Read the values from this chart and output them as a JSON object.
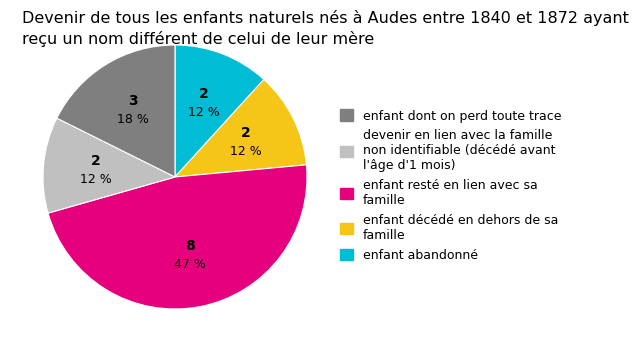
{
  "title": "Devenir de tous les enfants naturels nés à Audes entre 1840 et 1872 ayant\nreçu un nom différent de celui de leur mère",
  "slices": [
    {
      "label": "enfant dont on perd toute trace",
      "value": 3,
      "color": "#7f7f7f",
      "pct": "18 %",
      "text_color": "black"
    },
    {
      "label": "devenir en lien avec la famille\nnon identifiable (décédé avant\nl'âge d'1 mois)",
      "value": 2,
      "color": "#c0c0c0",
      "pct": "12 %",
      "text_color": "black"
    },
    {
      "label": "enfant resté en lien avec sa\nfamille",
      "value": 8,
      "color": "#e6007e",
      "pct": "47 %",
      "text_color": "black"
    },
    {
      "label": "enfant décédé en dehors de sa\nfamille",
      "value": 2,
      "color": "#f5c518",
      "pct": "12 %",
      "text_color": "black"
    },
    {
      "label": "enfant abandonné",
      "value": 2,
      "color": "#00bcd4",
      "pct": "12 %",
      "text_color": "black"
    }
  ],
  "title_fontsize": 11.5,
  "label_fontsize": 10,
  "legend_fontsize": 9,
  "background_color": "#ffffff",
  "start_angle": 90,
  "pie_order": [
    4,
    3,
    2,
    1,
    0
  ]
}
